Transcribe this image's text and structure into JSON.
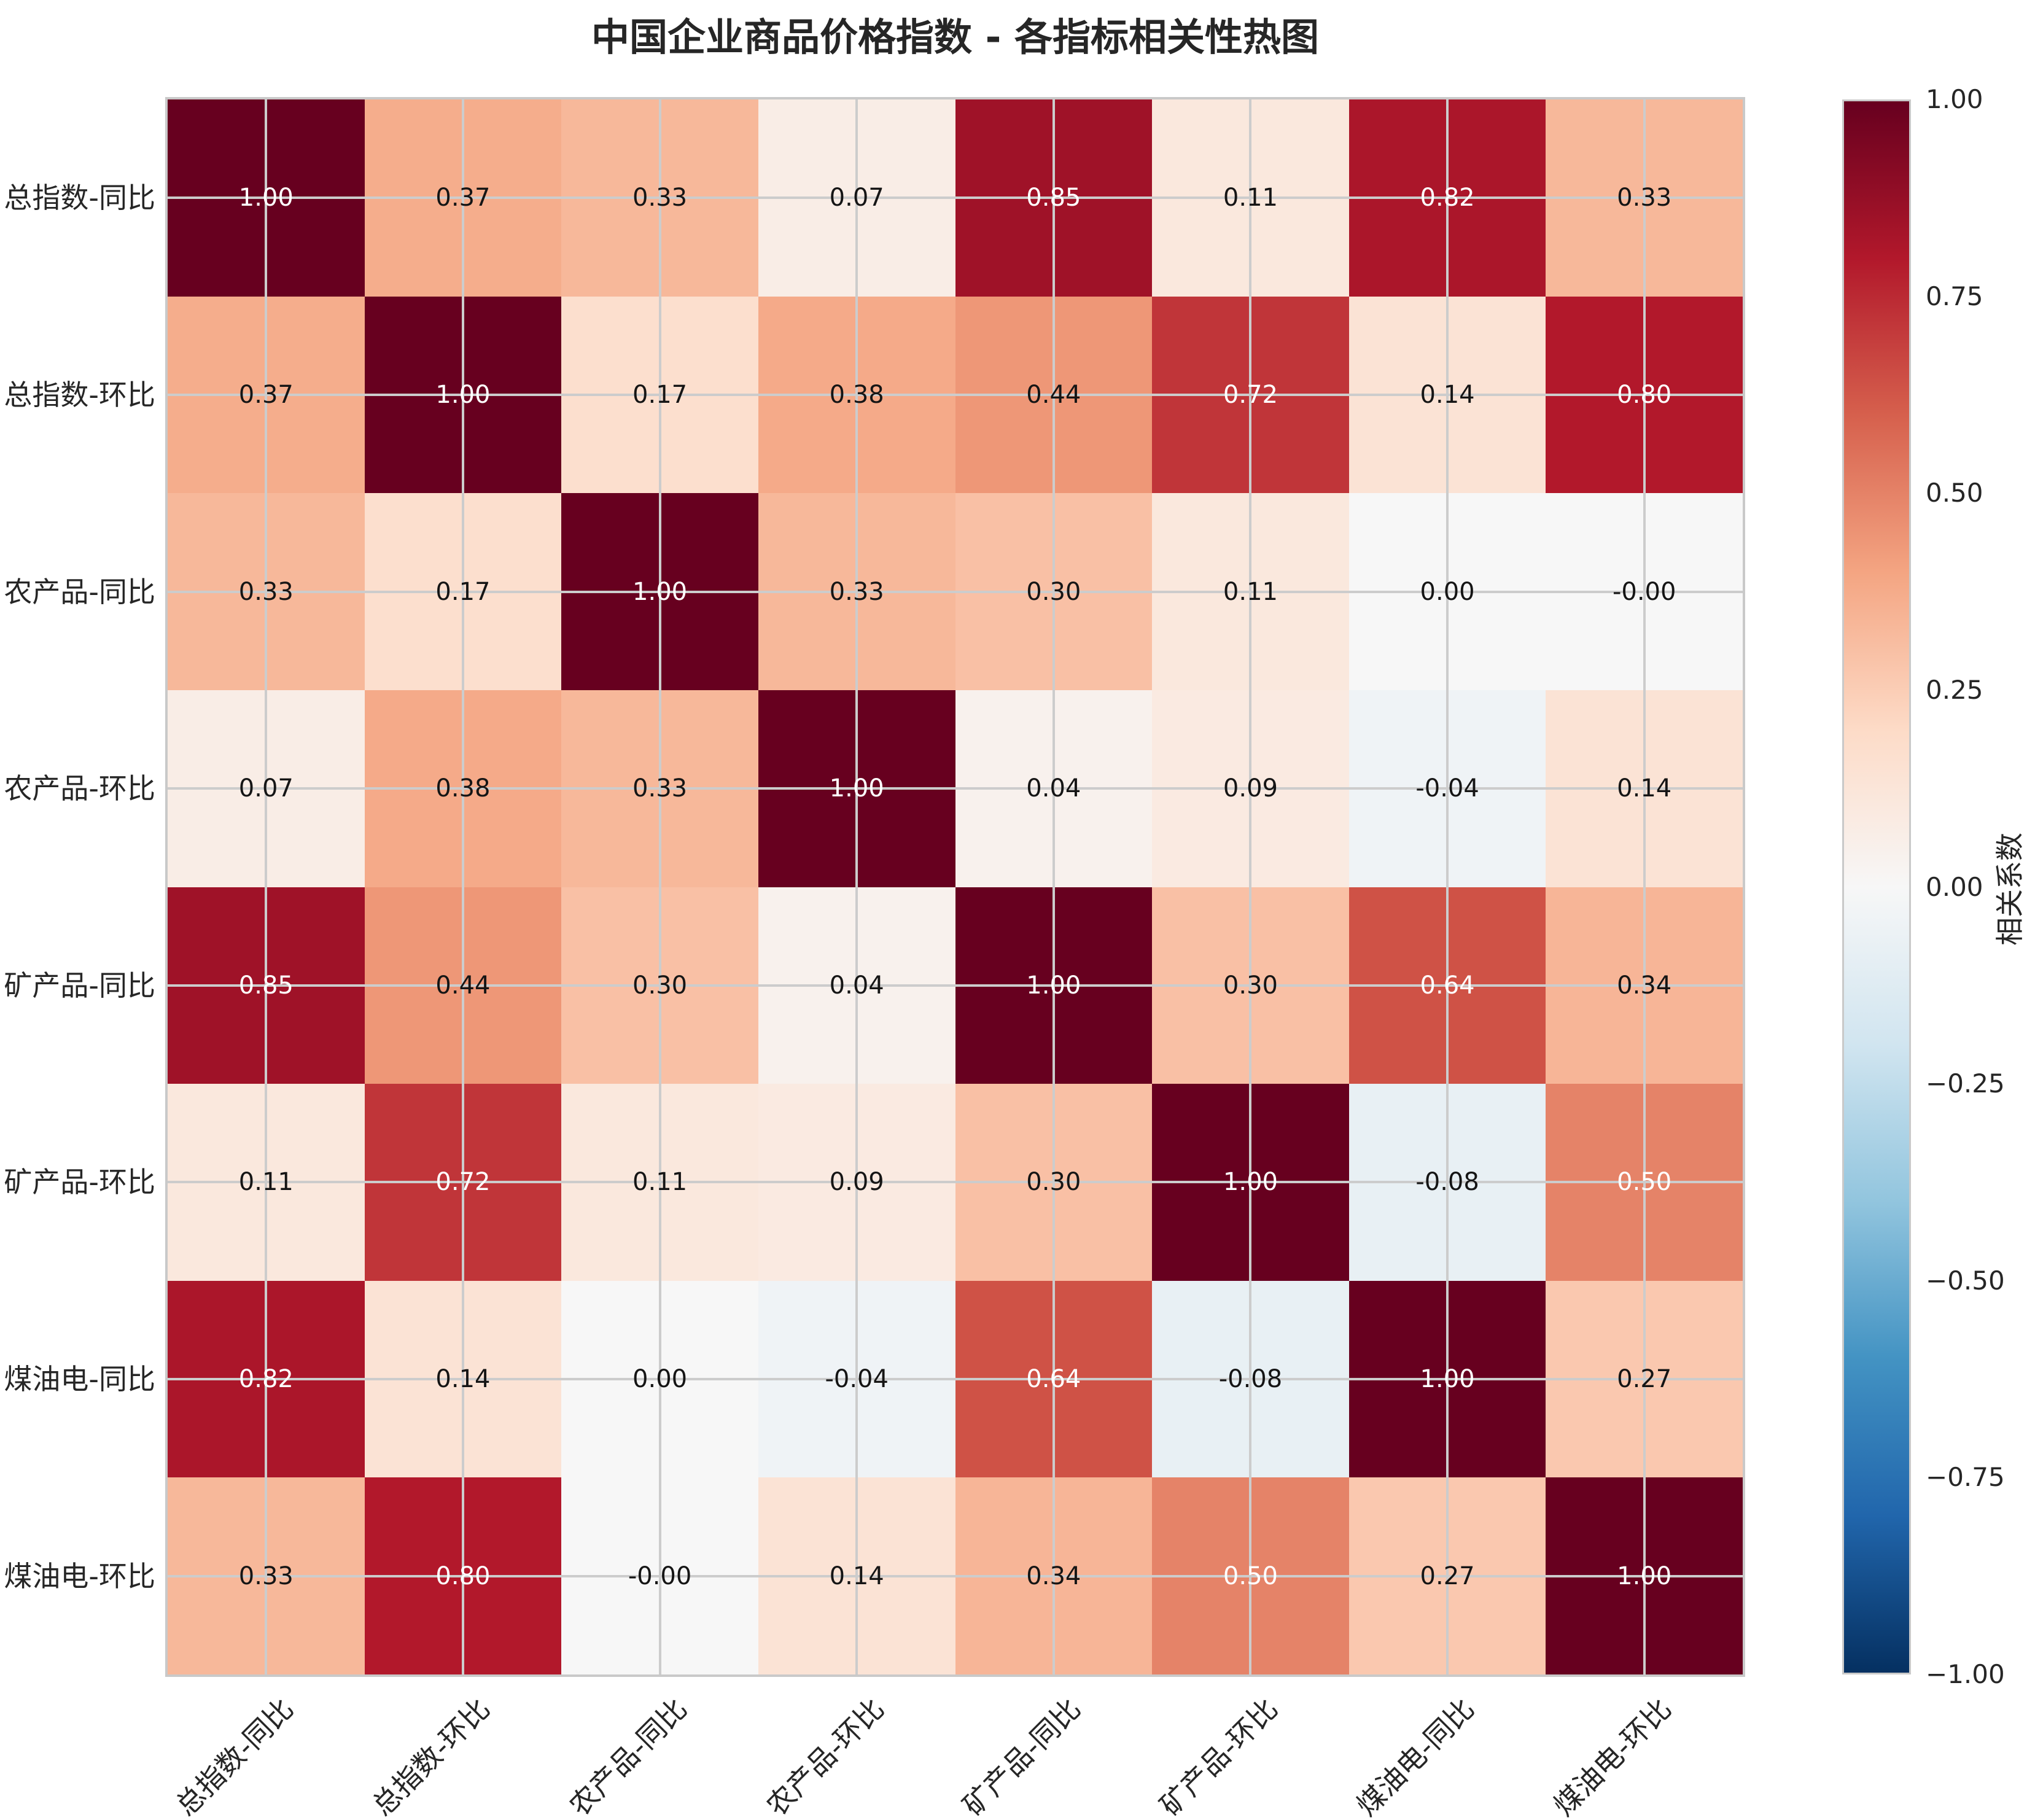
{
  "title": "中国企业商品价格指数 - 各指标相关性热图",
  "chart_data": {
    "type": "heatmap",
    "title": "中国企业商品价格指数 - 各指标相关性热图",
    "categories": [
      "总指数-同比",
      "总指数-环比",
      "农产品-同比",
      "农产品-环比",
      "矿产品-同比",
      "矿产品-环比",
      "煤油电-同比",
      "煤油电-环比"
    ],
    "values": [
      [
        1.0,
        0.37,
        0.33,
        0.07,
        0.85,
        0.11,
        0.82,
        0.33
      ],
      [
        0.37,
        1.0,
        0.17,
        0.38,
        0.44,
        0.72,
        0.14,
        0.8
      ],
      [
        0.33,
        0.17,
        1.0,
        0.33,
        0.3,
        0.11,
        0.0,
        -0.0
      ],
      [
        0.07,
        0.38,
        0.33,
        1.0,
        0.04,
        0.09,
        -0.04,
        0.14
      ],
      [
        0.85,
        0.44,
        0.3,
        0.04,
        1.0,
        0.3,
        0.64,
        0.34
      ],
      [
        0.11,
        0.72,
        0.11,
        0.09,
        0.3,
        1.0,
        -0.08,
        0.5
      ],
      [
        0.82,
        0.14,
        0.0,
        -0.04,
        0.64,
        -0.08,
        1.0,
        0.27
      ],
      [
        0.33,
        0.8,
        -0.0,
        0.14,
        0.34,
        0.5,
        0.27,
        1.0
      ]
    ],
    "value_labels": [
      [
        "1.00",
        "0.37",
        "0.33",
        "0.07",
        "0.85",
        "0.11",
        "0.82",
        "0.33"
      ],
      [
        "0.37",
        "1.00",
        "0.17",
        "0.38",
        "0.44",
        "0.72",
        "0.14",
        "0.80"
      ],
      [
        "0.33",
        "0.17",
        "1.00",
        "0.33",
        "0.30",
        "0.11",
        "0.00",
        "-0.00"
      ],
      [
        "0.07",
        "0.38",
        "0.33",
        "1.00",
        "0.04",
        "0.09",
        "-0.04",
        "0.14"
      ],
      [
        "0.85",
        "0.44",
        "0.30",
        "0.04",
        "1.00",
        "0.30",
        "0.64",
        "0.34"
      ],
      [
        "0.11",
        "0.72",
        "0.11",
        "0.09",
        "0.30",
        "1.00",
        "-0.08",
        "0.50"
      ],
      [
        "0.82",
        "0.14",
        "0.00",
        "-0.04",
        "0.64",
        "-0.08",
        "1.00",
        "0.27"
      ],
      [
        "0.33",
        "0.80",
        "-0.00",
        "0.14",
        "0.34",
        "0.50",
        "0.27",
        "1.00"
      ]
    ],
    "colormap": "RdBu_r",
    "vmin": -1,
    "vmax": 1,
    "grid": true,
    "colorbar": {
      "label": "相关系数",
      "ticks": [
        "1.00",
        "0.75",
        "0.50",
        "0.25",
        "0.00",
        "−0.25",
        "−0.50",
        "−0.75",
        "−1.00"
      ],
      "position": "right"
    }
  },
  "colors": {
    "background": "#ffffff",
    "grid_line": "#cccccc",
    "plot_border": "#c9c9c9",
    "title_text": "#262626",
    "tick_text": "#262626",
    "annotation_dark": "#151515",
    "annotation_light": "#ffffff",
    "rdbu_anchors": [
      "#67001f",
      "#b2182b",
      "#d6604d",
      "#f4a582",
      "#fddbc7",
      "#f7f7f7",
      "#d1e5f0",
      "#92c5de",
      "#4393c3",
      "#2166ac",
      "#053061"
    ]
  }
}
